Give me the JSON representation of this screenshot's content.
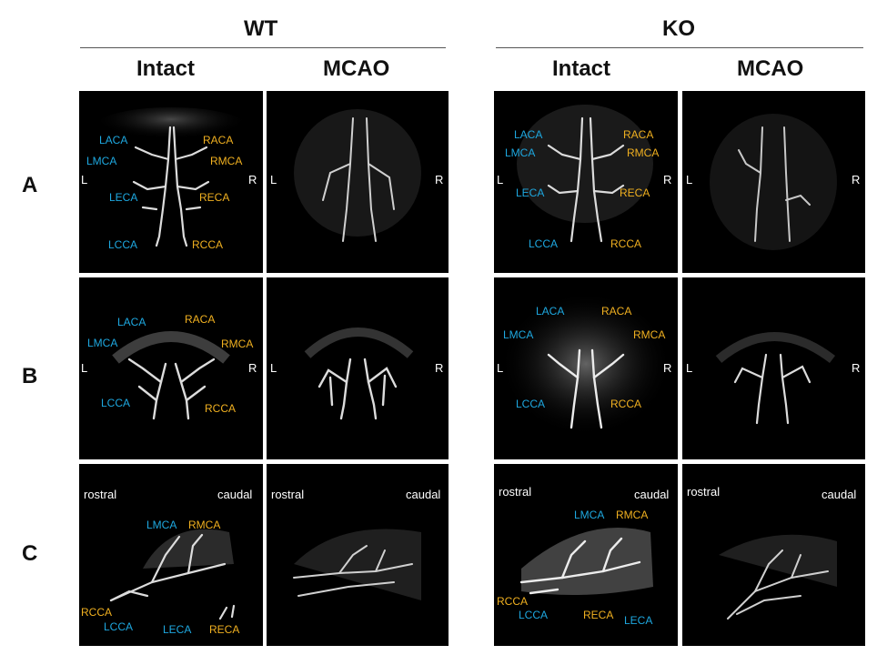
{
  "groups": {
    "wt": "WT",
    "ko": "KO"
  },
  "columns": {
    "intact": "Intact",
    "mcao": "MCAO"
  },
  "rows": {
    "a": "A",
    "b": "B",
    "c": "C"
  },
  "orient": {
    "left": "L",
    "right": "R",
    "rostral": "rostral",
    "caudal": "caudal"
  },
  "vessels": {
    "laca": "LACA",
    "raca": "RACA",
    "lmca": "LMCA",
    "rmca": "RMCA",
    "leca": "LECA",
    "reca": "RECA",
    "lcca": "LCCA",
    "rcca": "RCCA"
  },
  "colors": {
    "left_label": "#1ea8e0",
    "right_label": "#f0b020",
    "panel_bg": "#000000",
    "vessel": "#e6e6e6"
  }
}
